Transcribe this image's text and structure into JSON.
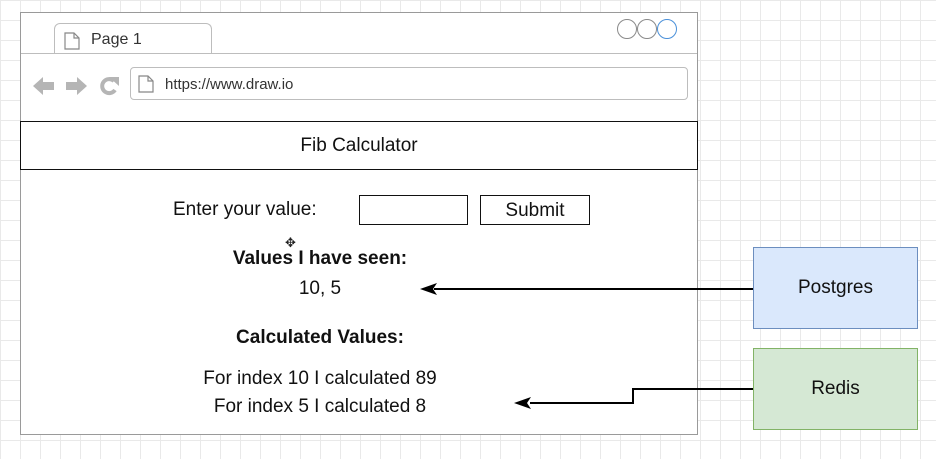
{
  "browser": {
    "tab_label": "Page 1",
    "url": "https://www.draw.io"
  },
  "app": {
    "title": "Fib Calculator",
    "input_label": "Enter your value:",
    "input_value": "",
    "submit_label": "Submit",
    "seen_heading": "Values I have seen:",
    "seen_values": "10, 5",
    "calc_heading": "Calculated Values:",
    "calculated": [
      "For index 10 I calculated 89",
      "For index 5 I calculated 8"
    ]
  },
  "diagram": {
    "nodes": [
      {
        "label": "Postgres",
        "fill": "#dae8fc",
        "stroke": "#6c8ebf"
      },
      {
        "label": "Redis",
        "fill": "#d5e8d4",
        "stroke": "#82b366"
      }
    ],
    "edges": [
      {
        "from": "Postgres",
        "to": "Values I have seen"
      },
      {
        "from": "Redis",
        "to": "Calculated Values"
      }
    ]
  },
  "icons": [
    "document-icon",
    "back-arrow-icon",
    "forward-arrow-icon",
    "refresh-icon",
    "window-button-icon",
    "move-cursor-icon"
  ]
}
